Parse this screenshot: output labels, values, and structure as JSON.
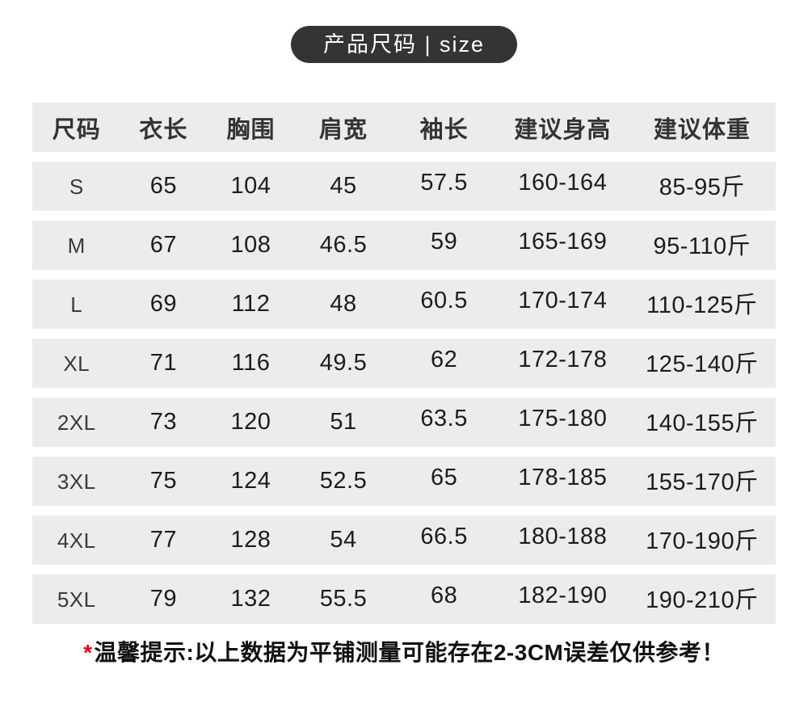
{
  "badge": {
    "label": "产品尺码 | size"
  },
  "chart_data": {
    "type": "table",
    "title": "产品尺码 | size",
    "columns": [
      "尺码",
      "衣长",
      "胸围",
      "肩宽",
      "袖长",
      "建议身高",
      "建议体重"
    ],
    "rows": [
      [
        "S",
        "65",
        "104",
        "45",
        "57.5",
        "160-164",
        "85-95斤"
      ],
      [
        "M",
        "67",
        "108",
        "46.5",
        "59",
        "165-169",
        "95-110斤"
      ],
      [
        "L",
        "69",
        "112",
        "48",
        "60.5",
        "170-174",
        "110-125斤"
      ],
      [
        "XL",
        "71",
        "116",
        "49.5",
        "62",
        "172-178",
        "125-140斤"
      ],
      [
        "2XL",
        "73",
        "120",
        "51",
        "63.5",
        "175-180",
        "140-155斤"
      ],
      [
        "3XL",
        "75",
        "124",
        "52.5",
        "65",
        "178-185",
        "155-170斤"
      ],
      [
        "4XL",
        "77",
        "128",
        "54",
        "66.5",
        "180-188",
        "170-190斤"
      ],
      [
        "5XL",
        "79",
        "132",
        "55.5",
        "68",
        "182-190",
        "190-210斤"
      ]
    ],
    "note": "*温馨提示:以上数据为平铺测量可能存在2-3CM误差仅供参考！"
  },
  "footer": {
    "asterisk": "*",
    "note": "温馨提示:以上数据为平铺测量可能存在2-3CM误差仅供参考！"
  },
  "colors": {
    "badge_bg": "#343434",
    "badge_text": "#ffffff",
    "row_bg": "#ececec",
    "header_text": "#333333",
    "cell_text": "#1c1c1c",
    "asterisk": "#e60012",
    "page_bg": "#ffffff"
  }
}
